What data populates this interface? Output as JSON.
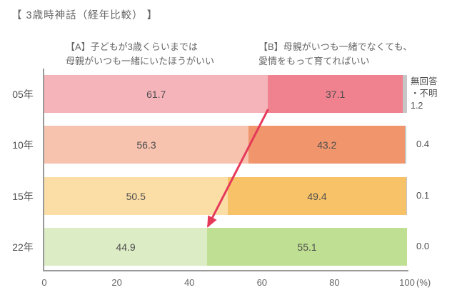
{
  "title": "【 3歳時神話（経年比較） 】",
  "legend": {
    "a_line1": "【A】子どもが3歳くらいまでは",
    "a_line2": "母親がいつも一緒にいたほうがいい",
    "b_line1": "【B】母親がいつも一緒でなくても、",
    "b_line2": "愛情をもって育てればいい"
  },
  "no_answer_label": {
    "line1": "無回答",
    "line2": "・不明"
  },
  "chart_data": {
    "type": "bar",
    "stacked": true,
    "orientation": "horizontal",
    "categories": [
      "05年",
      "10年",
      "15年",
      "22年"
    ],
    "series": [
      {
        "name": "【A】子どもが3歳くらいまでは母親がいつも一緒にいたほうがいい",
        "values": [
          61.7,
          56.3,
          50.5,
          44.9
        ],
        "colors": [
          "#f5b3ba",
          "#f7c2ae",
          "#fbdda6",
          "#dcecc4"
        ]
      },
      {
        "name": "【B】母親がいつも一緒でなくても、愛情をもって育てればいい",
        "values": [
          37.1,
          43.2,
          49.4,
          55.1
        ],
        "colors": [
          "#f0828f",
          "#f0956c",
          "#f8c368",
          "#bfdf92"
        ]
      },
      {
        "name": "無回答・不明",
        "values": [
          1.2,
          0.4,
          0.1,
          0.0
        ],
        "colors": [
          "#c6c6c6",
          "#c6c6c6",
          "#c6c6c6",
          "#c6c6c6"
        ]
      }
    ],
    "x_ticks": [
      "0",
      "20",
      "40",
      "60",
      "80",
      "100"
    ],
    "x_unit": "(%)",
    "xlim": [
      0,
      100
    ],
    "legend_position": "top",
    "grid": false
  },
  "colors": {
    "arrow": "#e5395a",
    "axis": "#999999",
    "text_dark": "#4f4f4f",
    "text_gray": "#666666"
  }
}
